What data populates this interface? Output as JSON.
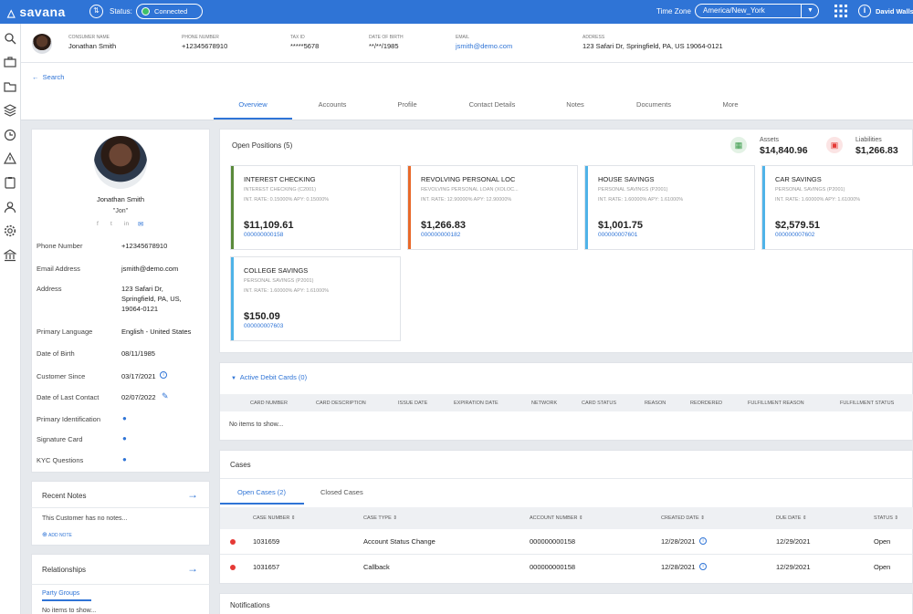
{
  "topbar": {
    "brand": "savana",
    "status_label": "Status:",
    "status_value": "Connected",
    "timezone_label": "Time Zone",
    "timezone_value": "America/New_York",
    "user_name": "David Walls"
  },
  "consumer": {
    "name_label": "CONSUMER NAME",
    "name": "Jonathan Smith",
    "phone_label": "PHONE NUMBER",
    "phone": "+12345678910",
    "taxid_label": "TAX ID",
    "taxid": "*****5678",
    "dob_label": "DATE OF BIRTH",
    "dob": "**/**/1985",
    "email_label": "EMAIL",
    "email": "jsmith@demo.com",
    "address_label": "ADDRESS",
    "address": "123 Safari Dr, Springfield, PA, US 19064-0121"
  },
  "back_search": "Search",
  "tabs": [
    "Overview",
    "Accounts",
    "Profile",
    "Contact Details",
    "Notes",
    "Documents",
    "More"
  ],
  "profile": {
    "name": "Jonathan Smith",
    "nickname": "\"Jon\"",
    "social": [
      "f",
      "t",
      "in",
      "✉"
    ],
    "fields": [
      {
        "label": "Phone Number",
        "value": "+12345678910"
      },
      {
        "label": "Email Address",
        "value": "jsmith@demo.com"
      },
      {
        "label": "Address",
        "value": "123 Safari Dr,"
      },
      {
        "label": "",
        "value": "Springfield, PA, US,"
      },
      {
        "label": "",
        "value": "19064-0121"
      },
      {
        "label": "Primary Language",
        "value": "English - United States"
      },
      {
        "label": "Date of Birth",
        "value": "08/11/1985"
      },
      {
        "label": "Customer Since",
        "value": "03/17/2021"
      },
      {
        "label": "Date of Last Contact",
        "value": "02/07/2022"
      },
      {
        "label": "Primary Identification",
        "value": ""
      },
      {
        "label": "Signature Card",
        "value": ""
      },
      {
        "label": "KYC Questions",
        "value": ""
      }
    ]
  },
  "recent_notes": {
    "title": "Recent Notes",
    "empty": "This Customer has no notes...",
    "add": "ADD NOTE"
  },
  "relationships": {
    "title": "Relationships",
    "tab": "Party Groups",
    "empty": "No items to show..."
  },
  "positions": {
    "title": "Open Positions (5)",
    "assets_label": "Assets",
    "assets_value": "$14,840.96",
    "liabilities_label": "Liabilities",
    "liabilities_value": "$1,266.83",
    "accounts": [
      {
        "title": "INTEREST CHECKING",
        "sub": "INTEREST CHECKING (C2001)",
        "rate": "INT. RATE: 0.15000%    APY: 0.15000%",
        "amount": "$11,109.61",
        "number": "000000000158",
        "color": "#5a8a3a"
      },
      {
        "title": "REVOLVING PERSONAL LOC",
        "sub": "REVOLVING PERSONAL LOAN (XOLOC...",
        "rate": "INT. RATE: 12.90000%    APY: 12.90000%",
        "amount": "$1,266.83",
        "number": "000000000182",
        "color": "#e8692a"
      },
      {
        "title": "HOUSE SAVINGS",
        "sub": "PERSONAL SAVINGS (P2001)",
        "rate": "INT. RATE: 1.60000%    APY: 1.61000%",
        "amount": "$1,001.75",
        "number": "000000007601",
        "color": "#4fb3e8"
      },
      {
        "title": "CAR SAVINGS",
        "sub": "PERSONAL SAVINGS (P2001)",
        "rate": "INT. RATE: 1.60000%    APY: 1.61000%",
        "amount": "$2,579.51",
        "number": "000000007602",
        "color": "#4fb3e8"
      },
      {
        "title": "COLLEGE SAVINGS",
        "sub": "PERSONAL SAVINGS (P2001)",
        "rate": "INT. RATE: 1.60000%    APY: 1.61000%",
        "amount": "$150.09",
        "number": "000000007603",
        "color": "#4fb3e8"
      }
    ]
  },
  "debit_cards": {
    "title": "Active Debit Cards (0)",
    "columns": [
      "CARD NUMBER",
      "CARD DESCRIPTION",
      "ISSUE DATE",
      "EXPIRATION DATE",
      "NETWORK",
      "CARD STATUS",
      "REASON",
      "REORDERED",
      "FULFILLMENT REASON",
      "FULFILLMENT STATUS"
    ],
    "empty": "No items to show..."
  },
  "cases": {
    "title": "Cases",
    "tab_open": "Open Cases (2)",
    "tab_closed": "Closed Cases",
    "columns": [
      "CASE NUMBER",
      "CASE TYPE",
      "ACCOUNT NUMBER",
      "CREATED DATE",
      "DUE DATE",
      "STATUS"
    ],
    "rows": [
      {
        "number": "1031659",
        "type": "Account Status Change",
        "account": "000000000158",
        "created": "12/28/2021",
        "due": "12/29/2021",
        "status": "Open"
      },
      {
        "number": "1031657",
        "type": "Callback",
        "account": "000000000158",
        "created": "12/28/2021",
        "due": "12/29/2021",
        "status": "Open"
      }
    ]
  },
  "notifications": {
    "title": "Notifications"
  },
  "colors": {
    "accent": "#2f74d6",
    "alert": "#e53935"
  }
}
